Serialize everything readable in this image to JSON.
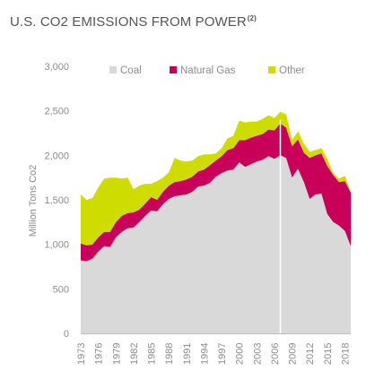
{
  "title": "U.S. CO2 EMISSIONS FROM POWER",
  "title_superscript": "(2)",
  "chart_data": {
    "type": "area",
    "stacked": true,
    "ylabel": "Million Tons Co2",
    "xlabel": "",
    "ylim": [
      0,
      3000
    ],
    "yticks": [
      0,
      500,
      1000,
      1500,
      2000,
      2500,
      3000
    ],
    "ytick_labels": [
      "0",
      "500",
      "1,000",
      "1,500",
      "2,000",
      "2,500",
      "3,000"
    ],
    "xlim": [
      1973,
      2019
    ],
    "xticks": [
      1973,
      1976,
      1979,
      1982,
      1985,
      1988,
      1991,
      1994,
      1997,
      2000,
      2003,
      2006,
      2009,
      2012,
      2015,
      2018
    ],
    "legend_position": "top-center",
    "vertical_marker_x": 2007,
    "x": [
      1973,
      1974,
      1975,
      1976,
      1977,
      1978,
      1979,
      1980,
      1981,
      1982,
      1983,
      1984,
      1985,
      1986,
      1987,
      1988,
      1989,
      1990,
      1991,
      1992,
      1993,
      1994,
      1995,
      1996,
      1997,
      1998,
      1999,
      2000,
      2001,
      2002,
      2003,
      2004,
      2005,
      2006,
      2007,
      2008,
      2009,
      2010,
      2011,
      2012,
      2013,
      2014,
      2015,
      2016,
      2017,
      2018,
      2019
    ],
    "series": [
      {
        "name": "Coal",
        "color": "#d9d9d9",
        "values": [
          820,
          810,
          840,
          920,
          980,
          970,
          1080,
          1140,
          1180,
          1190,
          1250,
          1320,
          1380,
          1370,
          1450,
          1510,
          1540,
          1550,
          1560,
          1590,
          1650,
          1660,
          1690,
          1760,
          1800,
          1830,
          1840,
          1920,
          1870,
          1900,
          1930,
          1950,
          1990,
          1960,
          2000,
          1970,
          1750,
          1850,
          1700,
          1510,
          1560,
          1570,
          1340,
          1250,
          1210,
          1150,
          980
        ]
      },
      {
        "name": "Natural Gas",
        "color": "#c8005a",
        "values": [
          190,
          180,
          160,
          160,
          160,
          170,
          170,
          180,
          170,
          170,
          140,
          140,
          150,
          130,
          140,
          150,
          160,
          160,
          170,
          170,
          170,
          180,
          200,
          180,
          190,
          230,
          240,
          250,
          300,
          300,
          290,
          290,
          300,
          320,
          360,
          340,
          350,
          330,
          330,
          460,
          440,
          450,
          540,
          530,
          490,
          560,
          600
        ]
      },
      {
        "name": "Other",
        "color": "#cfdc00",
        "values": [
          550,
          510,
          520,
          560,
          600,
          610,
          500,
          420,
          400,
          260,
          270,
          220,
          150,
          210,
          160,
          150,
          270,
          230,
          200,
          180,
          170,
          170,
          120,
          80,
          90,
          130,
          140,
          220,
          200,
          180,
          160,
          170,
          160,
          140,
          130,
          150,
          70,
          90,
          100,
          70,
          60,
          60,
          80,
          20,
          40,
          60,
          10
        ]
      }
    ]
  }
}
